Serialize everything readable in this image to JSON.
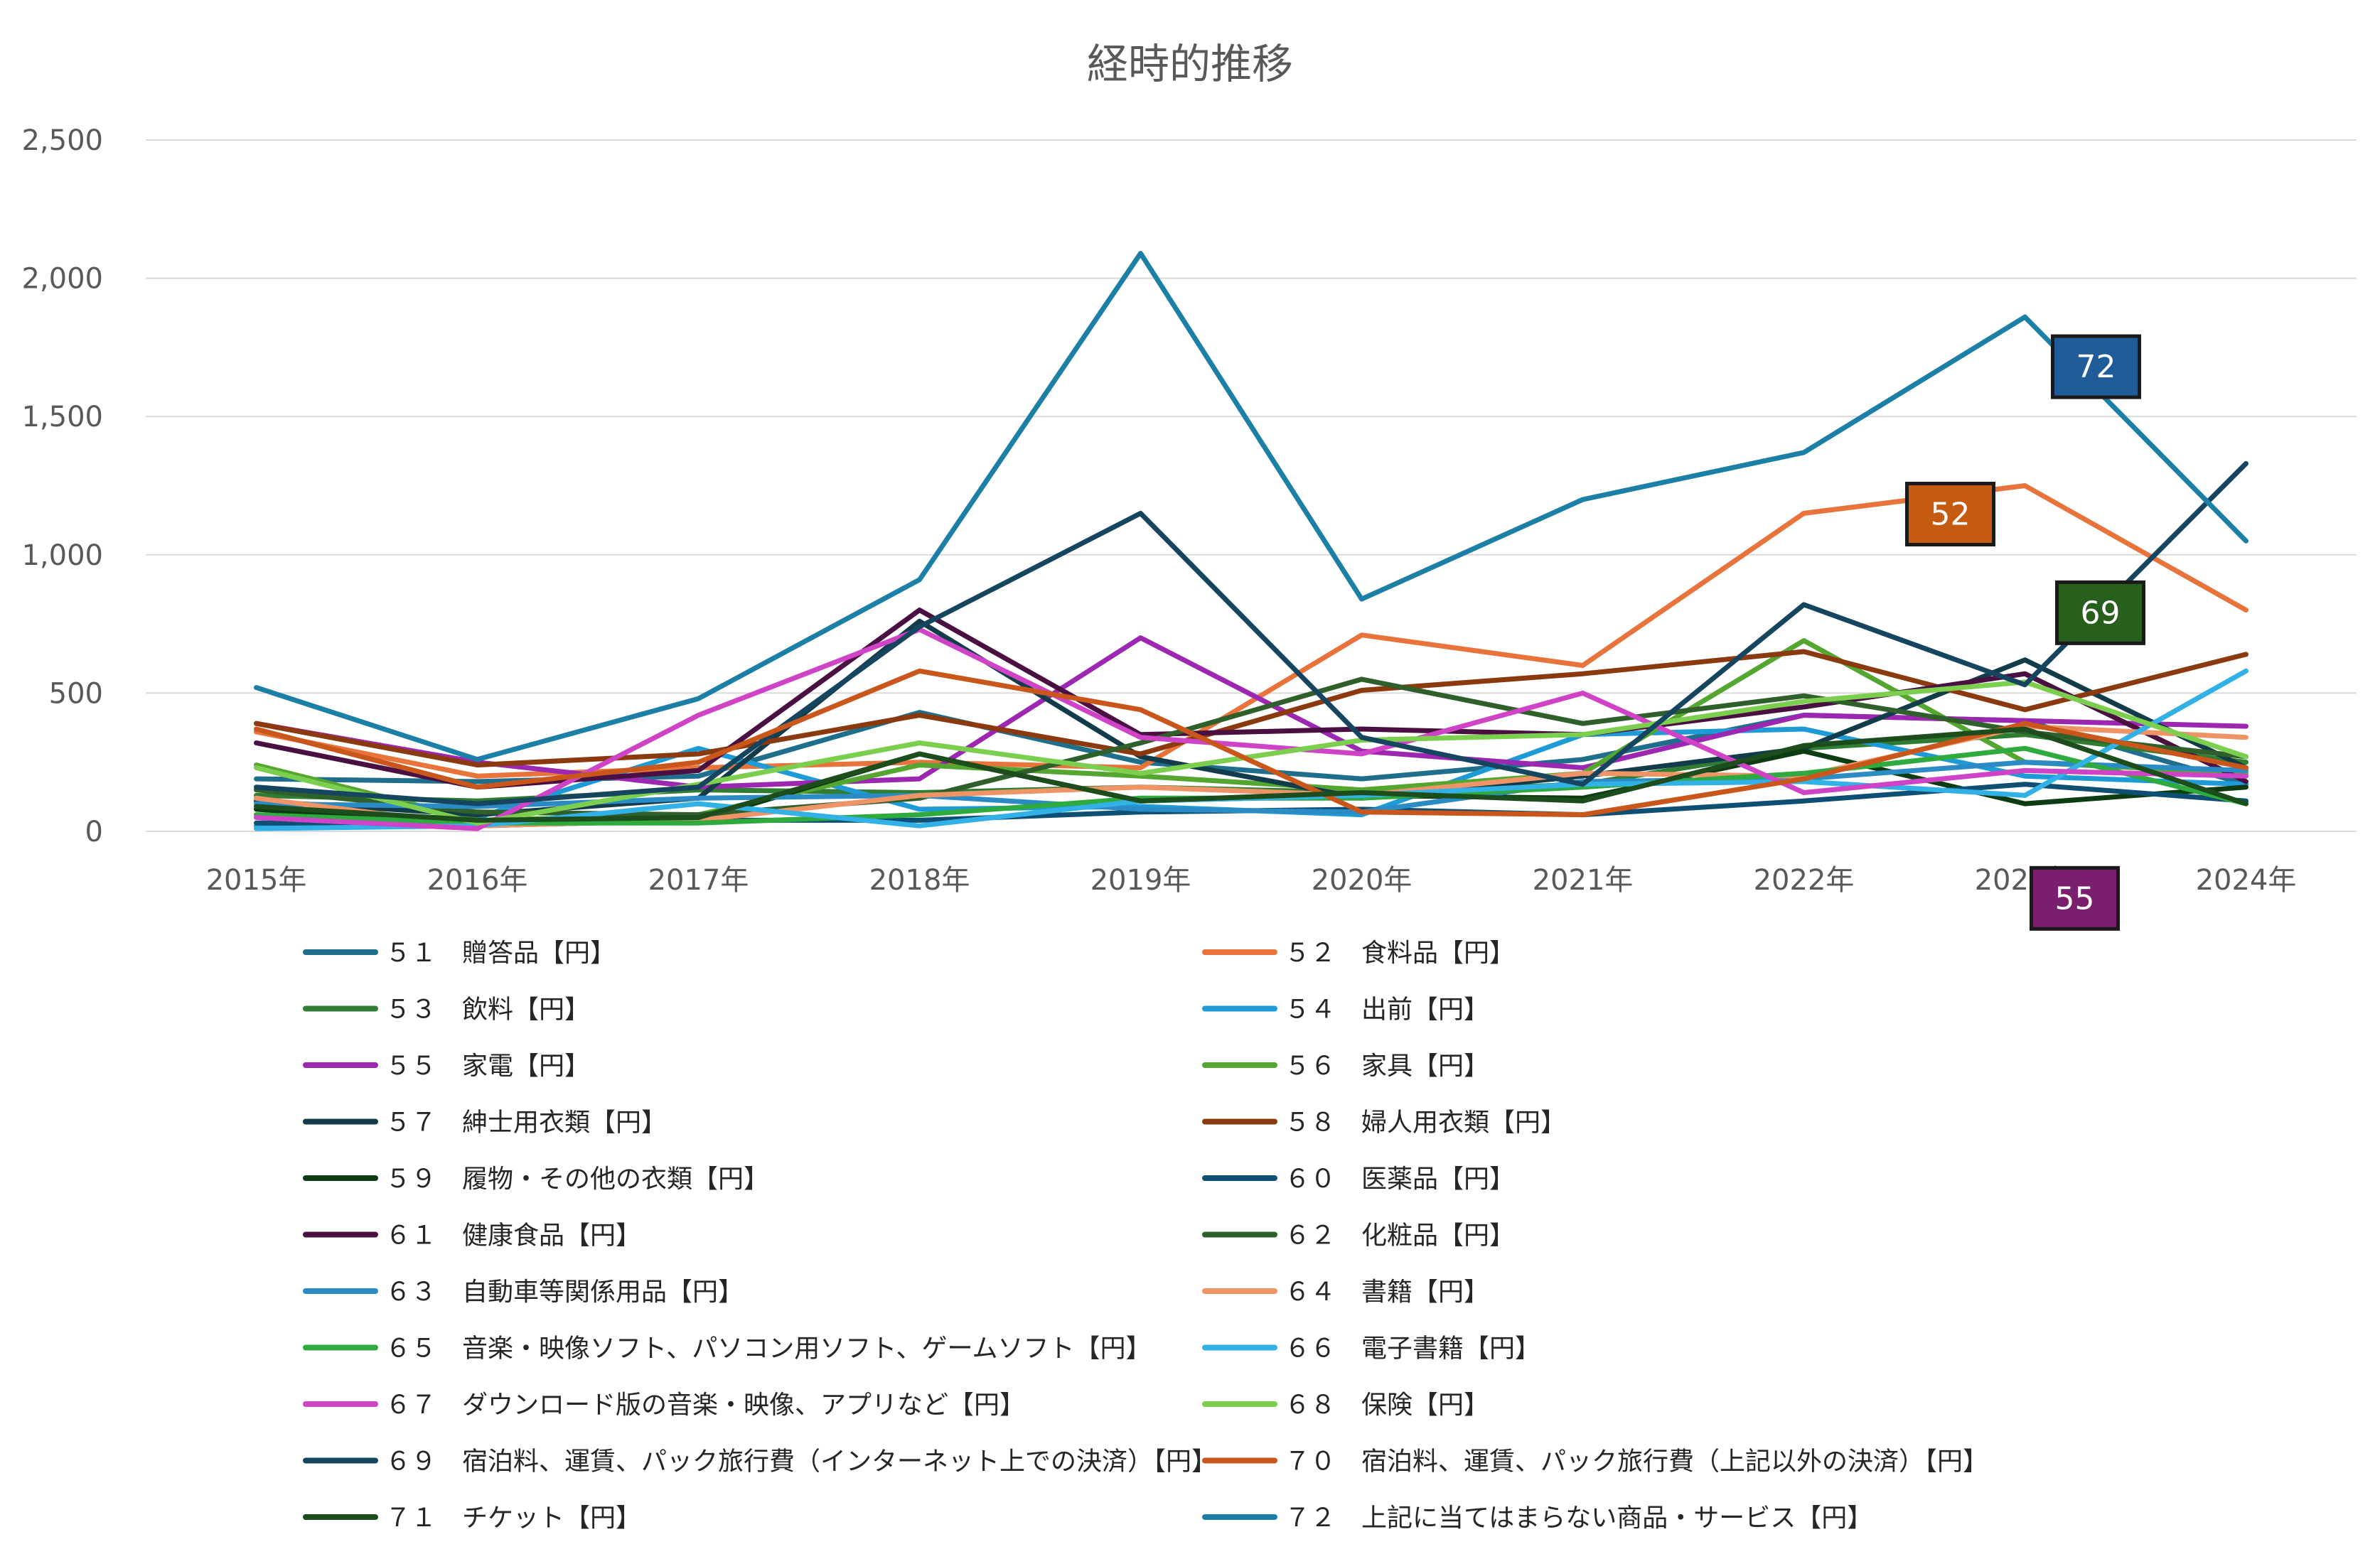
{
  "chart_data": {
    "type": "line",
    "title": "経時的推移",
    "xlabel": "",
    "ylabel": "",
    "categories": [
      "2015年",
      "2016年",
      "2017年",
      "2018年",
      "2019年",
      "2020年",
      "2021年",
      "2022年",
      "2023年",
      "2024年"
    ],
    "ylim": [
      0,
      2500
    ],
    "yticks": [
      0,
      500,
      1000,
      1500,
      2000,
      2500
    ],
    "ytick_labels": [
      "0",
      "500",
      "1,000",
      "1,500",
      "2,000",
      "2,500"
    ],
    "grid": true,
    "legend_position": "bottom",
    "series": [
      {
        "name": "５１　贈答品【円】",
        "color": "#1f6e8c",
        "values": [
          190,
          180,
          200,
          430,
          250,
          190,
          260,
          420,
          400,
          170
        ]
      },
      {
        "name": "５２　食料品【円】",
        "color": "#e8743b",
        "values": [
          360,
          200,
          230,
          250,
          230,
          710,
          600,
          1150,
          1250,
          800
        ]
      },
      {
        "name": "５３　飲料【円】",
        "color": "#2e7d32",
        "values": [
          130,
          110,
          150,
          140,
          160,
          140,
          170,
          300,
          350,
          250
        ]
      },
      {
        "name": "５４　出前【円】",
        "color": "#1e9bd7",
        "values": [
          20,
          50,
          300,
          80,
          90,
          60,
          350,
          370,
          200,
          170
        ]
      },
      {
        "name": "５５　家電【円】",
        "color": "#9c27b0",
        "values": [
          390,
          250,
          160,
          190,
          700,
          290,
          230,
          420,
          400,
          380
        ]
      },
      {
        "name": "５６　家具【円】",
        "color": "#55a630",
        "values": [
          240,
          40,
          60,
          240,
          200,
          150,
          210,
          690,
          250,
          210
        ]
      },
      {
        "name": "５７　紳士用衣類【円】",
        "color": "#123c4a",
        "values": [
          110,
          60,
          120,
          760,
          270,
          120,
          200,
          300,
          620,
          230
        ]
      },
      {
        "name": "５８　婦人用衣類【円】",
        "color": "#8b3a0f",
        "values": [
          390,
          240,
          280,
          420,
          280,
          510,
          570,
          650,
          440,
          640
        ]
      },
      {
        "name": "５９　履物・その他の衣類【円】",
        "color": "#0d3b12",
        "values": [
          80,
          20,
          40,
          280,
          110,
          130,
          120,
          290,
          100,
          160
        ]
      },
      {
        "name": "６０　医薬品【円】",
        "color": "#0e4f73",
        "values": [
          30,
          30,
          40,
          40,
          70,
          80,
          60,
          110,
          170,
          110
        ]
      },
      {
        "name": "６１　健康食品【円】",
        "color": "#4a1042",
        "values": [
          320,
          160,
          220,
          800,
          350,
          370,
          350,
          450,
          570,
          180
        ]
      },
      {
        "name": "６２　化粧品【円】",
        "color": "#2f5f2a",
        "values": [
          150,
          70,
          60,
          120,
          320,
          550,
          390,
          490,
          360,
          270
        ]
      },
      {
        "name": "６３　自動車等関係用品【円】",
        "color": "#2b8bc4",
        "values": [
          100,
          90,
          120,
          130,
          80,
          70,
          180,
          190,
          250,
          220
        ]
      },
      {
        "name": "６４　書籍【円】",
        "color": "#ee9467",
        "values": [
          120,
          20,
          40,
          130,
          160,
          130,
          210,
          200,
          380,
          340
        ]
      },
      {
        "name": "６５　音楽・映像ソフト、パソコン用ソフト、ゲームソフト【円】",
        "color": "#2eaa3e",
        "values": [
          60,
          30,
          30,
          60,
          120,
          120,
          160,
          210,
          300,
          100
        ]
      },
      {
        "name": "６６　電子書籍【円】",
        "color": "#31b1e6",
        "values": [
          10,
          20,
          100,
          20,
          110,
          130,
          170,
          180,
          130,
          580
        ]
      },
      {
        "name": "６７　ダウンロード版の音楽・映像、アプリなど【円】",
        "color": "#cf43c7",
        "values": [
          50,
          10,
          420,
          730,
          340,
          280,
          500,
          140,
          220,
          200
        ]
      },
      {
        "name": "６８　保険【円】",
        "color": "#7ccf4e",
        "values": [
          230,
          30,
          170,
          320,
          210,
          330,
          350,
          470,
          540,
          270
        ]
      },
      {
        "name": "６９　宿泊料、運賃、パック旅行費（インターネット上での決済）【円】",
        "color": "#16465f",
        "values": [
          160,
          100,
          160,
          740,
          1150,
          340,
          170,
          820,
          530,
          1330
        ]
      },
      {
        "name": "７０　宿泊料、運賃、パック旅行費（上記以外の決済）【円】",
        "color": "#c9561a",
        "values": [
          370,
          160,
          250,
          580,
          440,
          70,
          60,
          190,
          390,
          230
        ]
      },
      {
        "name": "７１　チケット【円】",
        "color": "#1d4d1d",
        "values": [
          90,
          40,
          50,
          280,
          110,
          140,
          110,
          310,
          370,
          100
        ]
      },
      {
        "name": "７２　上記に当てはまらない商品・サービス【円】",
        "color": "#1b7fa6",
        "values": [
          520,
          260,
          480,
          910,
          2090,
          840,
          1200,
          1370,
          1860,
          1050
        ]
      }
    ],
    "annotations": [
      {
        "label": "72",
        "color": "#1f5c99",
        "series": "７２　上記に当てはまらない商品・サービス【円】",
        "x": "2023年",
        "y": 1860
      },
      {
        "label": "52",
        "color": "#c55a11",
        "series": "５２　食料品【円】",
        "x": "2023年",
        "y": 1250
      },
      {
        "label": "69",
        "color": "#285f1d",
        "series": "６９　宿泊料、運賃、パック旅行費（インターネット上での決済）【円】",
        "x": "2024年",
        "y": 1330
      },
      {
        "label": "55",
        "color": "#7a1f6e",
        "series": "５５　家電【円】",
        "x": "2023年",
        "y": 400
      }
    ]
  }
}
